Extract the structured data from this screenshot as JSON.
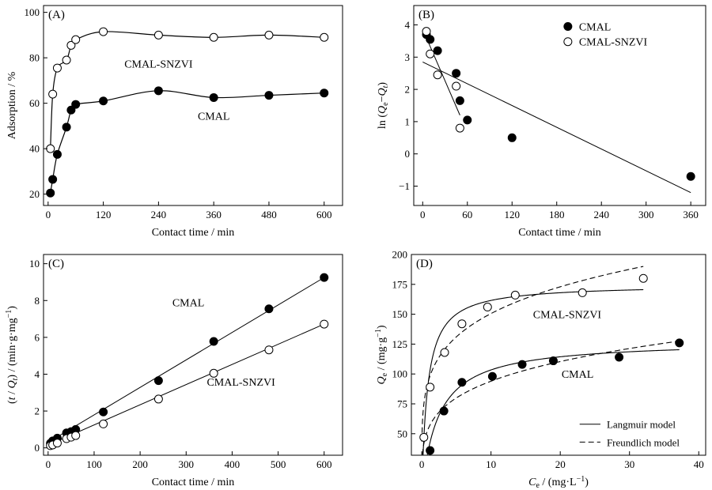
{
  "chart_data": [
    {
      "panel": "(A)",
      "type": "line",
      "xlabel": "Contact time / min",
      "ylabel": "Adsorption / %",
      "xlim": [
        -10,
        640
      ],
      "ylim": [
        15,
        103
      ],
      "xticks": [
        0,
        120,
        240,
        360,
        480,
        600
      ],
      "yticks": [
        20,
        40,
        60,
        80,
        100
      ],
      "series": [
        {
          "name": "CMAL-SNZVI",
          "marker": "open",
          "x": [
            5,
            10,
            20,
            40,
            50,
            60,
            120,
            240,
            360,
            480,
            600
          ],
          "y": [
            40,
            64,
            75.5,
            79,
            85.5,
            88,
            91.5,
            90,
            89,
            90,
            89
          ]
        },
        {
          "name": "CMAL",
          "marker": "filled",
          "x": [
            5,
            10,
            20,
            40,
            50,
            60,
            120,
            240,
            360,
            480,
            600
          ],
          "y": [
            20.5,
            26.5,
            37.5,
            49.5,
            57,
            59.5,
            61,
            65.5,
            62.5,
            63.5,
            64.5
          ]
        }
      ],
      "annotations": [
        "CMAL-SNZVI",
        "CMAL"
      ]
    },
    {
      "panel": "(B)",
      "type": "scatter",
      "xlabel": "Contact time / min",
      "ylabel": "ln (Qe−Qt)",
      "xlim": [
        -12,
        380
      ],
      "ylim": [
        -1.6,
        4.6
      ],
      "xticks": [
        0,
        60,
        120,
        180,
        240,
        300,
        360
      ],
      "yticks": [
        -1,
        0,
        1,
        2,
        3,
        4
      ],
      "legend": "top-right",
      "series": [
        {
          "name": "CMAL",
          "marker": "filled",
          "x": [
            5,
            10,
            20,
            45,
            50,
            60,
            120,
            360
          ],
          "y": [
            3.7,
            3.55,
            3.2,
            2.5,
            1.65,
            1.05,
            0.5,
            -0.7
          ],
          "fit_line": [
            [
              0,
              2.85
            ],
            [
              360,
              -1.2
            ]
          ]
        },
        {
          "name": "CMAL-SNZVI",
          "marker": "open",
          "x": [
            5,
            10,
            20,
            45,
            50
          ],
          "y": [
            3.8,
            3.1,
            2.45,
            2.1,
            0.8
          ],
          "fit_line": [
            [
              5,
              3.6
            ],
            [
              50,
              1.2
            ]
          ]
        }
      ]
    },
    {
      "panel": "(C)",
      "type": "line",
      "xlabel": "Contact time / min",
      "ylabel": "(t / Qt) / (min·g·mg⁻¹)",
      "xlim": [
        -10,
        640
      ],
      "ylim": [
        -0.4,
        10.5
      ],
      "xticks": [
        0,
        100,
        200,
        300,
        400,
        500,
        600
      ],
      "yticks": [
        0,
        2,
        4,
        6,
        8,
        10
      ],
      "series": [
        {
          "name": "CMAL",
          "marker": "filled",
          "x": [
            5,
            10,
            20,
            40,
            50,
            60,
            120,
            240,
            360,
            480,
            600
          ],
          "y": [
            0.25,
            0.38,
            0.53,
            0.81,
            0.88,
            1.0,
            1.95,
            3.65,
            5.78,
            7.55,
            9.25
          ],
          "fit_line": [
            [
              0,
              0.3
            ],
            [
              600,
              9.25
            ]
          ]
        },
        {
          "name": "CMAL-SNZVI",
          "marker": "open",
          "x": [
            5,
            10,
            20,
            40,
            50,
            60,
            120,
            240,
            360,
            480,
            600
          ],
          "y": [
            0.12,
            0.16,
            0.26,
            0.5,
            0.58,
            0.67,
            1.3,
            2.65,
            4.05,
            5.32,
            6.72
          ],
          "fit_line": [
            [
              0,
              0.15
            ],
            [
              600,
              6.72
            ]
          ]
        }
      ],
      "annotations": [
        "CMAL",
        "CMAL-SNZVI"
      ]
    },
    {
      "panel": "(D)",
      "type": "scatter",
      "xlabel": "Ce / (mg·L⁻¹)",
      "ylabel": "Qe / (mg·g⁻¹)",
      "xlim": [
        -1.5,
        41
      ],
      "ylim": [
        32,
        200
      ],
      "xticks": [
        0,
        10,
        20,
        30,
        40
      ],
      "yticks": [
        50,
        75,
        100,
        125,
        150,
        175,
        200
      ],
      "legend": "bottom-right",
      "legend_entries": [
        "Langmuir model",
        "Freundlich model"
      ],
      "series": [
        {
          "name": "CMAL-SNZVI",
          "marker": "open",
          "x": [
            0.3,
            1.2,
            3.3,
            5.8,
            9.5,
            13.5,
            23.2,
            32
          ],
          "y": [
            47,
            89,
            118,
            142,
            156,
            166,
            168,
            180
          ],
          "langmuir": {
            "qm": 175,
            "kl": 1.2
          },
          "freundlich": {
            "kf": 95,
            "n": 5
          }
        },
        {
          "name": "CMAL",
          "marker": "filled",
          "x": [
            1.2,
            3.2,
            5.8,
            10.2,
            14.5,
            19,
            28.5,
            37.2
          ],
          "y": [
            36,
            69,
            93,
            98,
            108,
            111,
            114,
            126
          ],
          "langmuir": {
            "qm": 128,
            "kl": 0.42
          },
          "freundlich": {
            "kf": 55,
            "n": 4.3
          }
        }
      ],
      "annotations": [
        "CMAL-SNZVI",
        "CMAL"
      ]
    }
  ]
}
